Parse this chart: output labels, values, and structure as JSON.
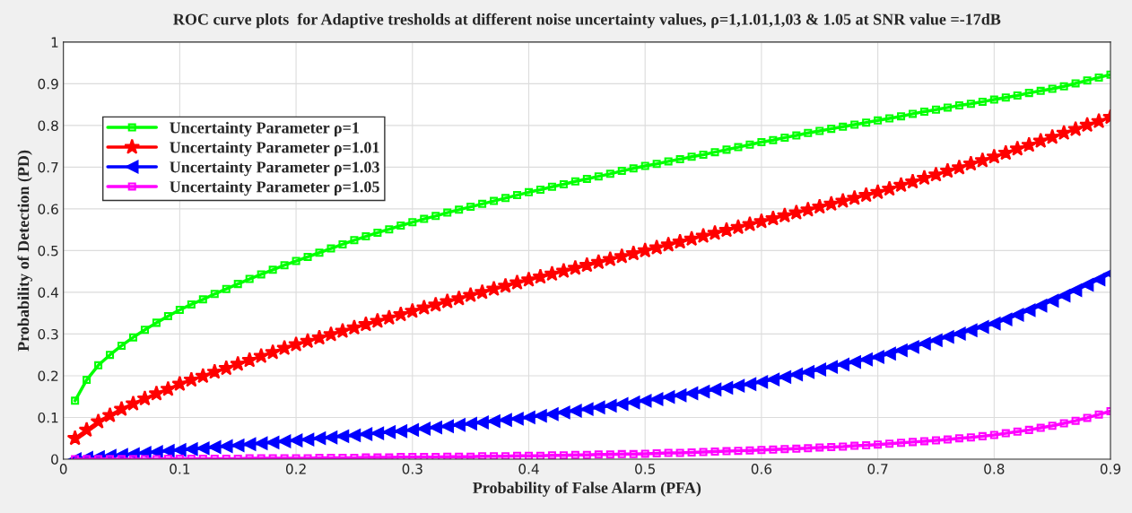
{
  "chart_data": {
    "type": "line",
    "title": "ROC curve plots  for Adaptive tresholds at different noise uncertainty values, ρ=1,1.01,1,03 & 1.05 at SNR value =-17dB",
    "xlabel": "Probability of False Alarm (PFA)",
    "ylabel": "Probability of Detection (PD)",
    "x": [
      0.01,
      0.02,
      0.03,
      0.04,
      0.05,
      0.06,
      0.07,
      0.08,
      0.09,
      0.1,
      0.11,
      0.12,
      0.13,
      0.14,
      0.15,
      0.16,
      0.17,
      0.18,
      0.19,
      0.2,
      0.21,
      0.22,
      0.23,
      0.24,
      0.25,
      0.26,
      0.27,
      0.28,
      0.29,
      0.3,
      0.31,
      0.32,
      0.33,
      0.34,
      0.35,
      0.36,
      0.37,
      0.38,
      0.39,
      0.4,
      0.41,
      0.42,
      0.43,
      0.44,
      0.45,
      0.46,
      0.47,
      0.48,
      0.49,
      0.5,
      0.51,
      0.52,
      0.53,
      0.54,
      0.55,
      0.56,
      0.57,
      0.58,
      0.59,
      0.6,
      0.61,
      0.62,
      0.63,
      0.64,
      0.65,
      0.66,
      0.67,
      0.68,
      0.69,
      0.7,
      0.71,
      0.72,
      0.73,
      0.74,
      0.75,
      0.76,
      0.77,
      0.78,
      0.79,
      0.8,
      0.81,
      0.82,
      0.83,
      0.84,
      0.85,
      0.86,
      0.87,
      0.88,
      0.89,
      0.9
    ],
    "series": [
      {
        "name": "Uncertainty Parameter ρ=1",
        "color": "#00ff00",
        "marker": "square",
        "values": [
          0.14,
          0.19,
          0.225,
          0.25,
          0.272,
          0.292,
          0.31,
          0.327,
          0.343,
          0.358,
          0.371,
          0.383,
          0.396,
          0.408,
          0.42,
          0.432,
          0.443,
          0.454,
          0.465,
          0.475,
          0.485,
          0.495,
          0.505,
          0.515,
          0.525,
          0.534,
          0.543,
          0.551,
          0.56,
          0.568,
          0.576,
          0.583,
          0.591,
          0.598,
          0.605,
          0.612,
          0.619,
          0.626,
          0.633,
          0.64,
          0.646,
          0.653,
          0.659,
          0.666,
          0.672,
          0.678,
          0.684,
          0.691,
          0.697,
          0.703,
          0.708,
          0.714,
          0.719,
          0.725,
          0.73,
          0.736,
          0.742,
          0.748,
          0.754,
          0.76,
          0.765,
          0.771,
          0.776,
          0.782,
          0.787,
          0.792,
          0.797,
          0.802,
          0.807,
          0.812,
          0.817,
          0.822,
          0.828,
          0.833,
          0.838,
          0.843,
          0.848,
          0.852,
          0.857,
          0.862,
          0.867,
          0.872,
          0.878,
          0.883,
          0.888,
          0.894,
          0.901,
          0.908,
          0.915,
          0.922
        ]
      },
      {
        "name": "Uncertainty Parameter ρ=1.01",
        "color": "#ff0000",
        "marker": "star",
        "values": [
          0.05,
          0.07,
          0.09,
          0.105,
          0.12,
          0.133,
          0.145,
          0.157,
          0.168,
          0.18,
          0.19,
          0.199,
          0.209,
          0.218,
          0.228,
          0.237,
          0.247,
          0.256,
          0.266,
          0.275,
          0.283,
          0.291,
          0.299,
          0.307,
          0.315,
          0.323,
          0.331,
          0.339,
          0.347,
          0.355,
          0.363,
          0.37,
          0.378,
          0.385,
          0.393,
          0.4,
          0.408,
          0.415,
          0.423,
          0.43,
          0.437,
          0.444,
          0.451,
          0.458,
          0.465,
          0.472,
          0.479,
          0.486,
          0.493,
          0.5,
          0.507,
          0.514,
          0.521,
          0.528,
          0.535,
          0.542,
          0.549,
          0.556,
          0.563,
          0.57,
          0.577,
          0.584,
          0.591,
          0.598,
          0.605,
          0.612,
          0.619,
          0.626,
          0.633,
          0.64,
          0.648,
          0.657,
          0.665,
          0.674,
          0.682,
          0.691,
          0.699,
          0.708,
          0.716,
          0.725,
          0.734,
          0.744,
          0.753,
          0.763,
          0.772,
          0.782,
          0.791,
          0.801,
          0.81,
          0.82
        ]
      },
      {
        "name": "Uncertainty Parameter ρ=1.03",
        "color": "#0000ff",
        "marker": "triangle",
        "values": [
          0.0,
          0.003,
          0.005,
          0.008,
          0.01,
          0.012,
          0.015,
          0.017,
          0.02,
          0.022,
          0.024,
          0.026,
          0.029,
          0.031,
          0.033,
          0.036,
          0.038,
          0.04,
          0.043,
          0.045,
          0.047,
          0.05,
          0.052,
          0.055,
          0.057,
          0.06,
          0.062,
          0.065,
          0.067,
          0.07,
          0.073,
          0.076,
          0.079,
          0.082,
          0.085,
          0.088,
          0.091,
          0.094,
          0.097,
          0.1,
          0.104,
          0.108,
          0.112,
          0.116,
          0.12,
          0.124,
          0.128,
          0.132,
          0.136,
          0.14,
          0.144,
          0.149,
          0.153,
          0.158,
          0.162,
          0.167,
          0.171,
          0.176,
          0.18,
          0.185,
          0.191,
          0.197,
          0.203,
          0.209,
          0.215,
          0.221,
          0.227,
          0.233,
          0.239,
          0.245,
          0.253,
          0.261,
          0.269,
          0.277,
          0.285,
          0.293,
          0.301,
          0.309,
          0.317,
          0.325,
          0.335,
          0.346,
          0.357,
          0.368,
          0.38,
          0.392,
          0.405,
          0.418,
          0.431,
          0.445
        ]
      },
      {
        "name": "Uncertainty Parameter ρ=1.05",
        "color": "#ff00ff",
        "marker": "square",
        "values": [
          0.0,
          0.0,
          0.0,
          0.0,
          0.0,
          0.0,
          0.0,
          0.0,
          0.001,
          0.001,
          0.001,
          0.001,
          0.001,
          0.001,
          0.001,
          0.002,
          0.002,
          0.002,
          0.002,
          0.002,
          0.002,
          0.003,
          0.003,
          0.003,
          0.003,
          0.004,
          0.004,
          0.004,
          0.005,
          0.005,
          0.005,
          0.005,
          0.006,
          0.006,
          0.006,
          0.007,
          0.007,
          0.007,
          0.008,
          0.008,
          0.008,
          0.009,
          0.009,
          0.01,
          0.01,
          0.011,
          0.011,
          0.012,
          0.012,
          0.013,
          0.014,
          0.015,
          0.015,
          0.016,
          0.017,
          0.018,
          0.019,
          0.02,
          0.021,
          0.022,
          0.023,
          0.024,
          0.025,
          0.026,
          0.028,
          0.029,
          0.03,
          0.032,
          0.033,
          0.035,
          0.037,
          0.039,
          0.041,
          0.043,
          0.045,
          0.047,
          0.05,
          0.052,
          0.055,
          0.058,
          0.062,
          0.066,
          0.07,
          0.075,
          0.08,
          0.086,
          0.092,
          0.099,
          0.107,
          0.115
        ]
      }
    ],
    "xlim": [
      0,
      0.9
    ],
    "xticks": [
      0,
      0.1,
      0.2,
      0.3,
      0.4,
      0.5,
      0.6,
      0.7,
      0.8,
      0.9
    ],
    "ylim": [
      0,
      1
    ],
    "yticks": [
      0,
      0.1,
      0.2,
      0.3,
      0.4,
      0.5,
      0.6,
      0.7,
      0.8,
      0.9,
      1
    ],
    "grid": true,
    "legend": "top left",
    "line_style": "solid"
  }
}
